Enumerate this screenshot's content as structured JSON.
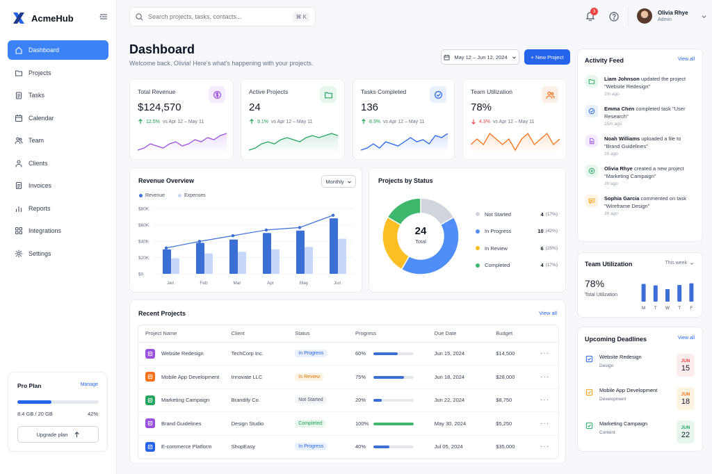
{
  "app": {
    "name": "AcmeHub"
  },
  "sidebar": {
    "items": [
      {
        "label": "Dashboard",
        "icon": "home-icon",
        "active": true
      },
      {
        "label": "Projects",
        "icon": "folder-icon"
      },
      {
        "label": "Tasks",
        "icon": "clipboard-icon"
      },
      {
        "label": "Calendar",
        "icon": "calendar-icon"
      },
      {
        "label": "Team",
        "icon": "users-icon"
      },
      {
        "label": "Clients",
        "icon": "user-icon"
      },
      {
        "label": "Invoices",
        "icon": "invoice-icon"
      },
      {
        "label": "Reports",
        "icon": "bar-chart-icon"
      },
      {
        "label": "Integrations",
        "icon": "grid-icon"
      },
      {
        "label": "Settings",
        "icon": "gear-icon"
      }
    ],
    "plan": {
      "title": "Pro Plan",
      "manage": "Manage",
      "used": "8.4 GB / 20 GB",
      "percent_label": "42%",
      "percent": 0.42,
      "upgrade": "Upgrade plan"
    }
  },
  "header": {
    "search_placeholder": "Search projects, tasks, contacts...",
    "shortcut": "⌘ K",
    "notification_count": "3",
    "user": {
      "name": "Olivia Rhye",
      "role": "Admin"
    }
  },
  "page": {
    "title": "Dashboard",
    "subtitle": "Welcome back, Olivia! Here's what's happening with your projects.",
    "date_range": "May 12 – Jun 12, 2024",
    "new_project": "+ New Project"
  },
  "stats": [
    {
      "title": "Total Revenue",
      "value": "$124,570",
      "delta": "12.5%",
      "direction": "up",
      "compare": "vs Apr 12 – May 11",
      "color": "#9b51e0",
      "bg": "#f4ebff",
      "icon": "dollar-icon",
      "spark": [
        6,
        7,
        9,
        8,
        7,
        9,
        10,
        8,
        9,
        11,
        10,
        12,
        11,
        13,
        14
      ]
    },
    {
      "title": "Active Projects",
      "value": "24",
      "delta": "9.1%",
      "direction": "up",
      "compare": "vs Apr 12 – May 11",
      "color": "#22a55e",
      "bg": "#e8f7ee",
      "icon": "folder-icon",
      "spark": [
        5,
        6,
        8,
        9,
        8,
        10,
        11,
        10,
        9,
        11,
        12,
        11,
        12,
        13,
        12
      ]
    },
    {
      "title": "Tasks Completed",
      "value": "136",
      "delta": "8.3%",
      "direction": "up",
      "compare": "vs Apr 12 – May 11",
      "color": "#2563eb",
      "bg": "#e8f0fe",
      "icon": "check-circle-icon",
      "spark": [
        6,
        7,
        9,
        7,
        10,
        9,
        8,
        10,
        12,
        10,
        11,
        9,
        13,
        12,
        14
      ]
    },
    {
      "title": "Team Utilization",
      "value": "78%",
      "delta": "4.3%",
      "direction": "down",
      "compare": "vs Apr 12 – May 11",
      "color": "#f97316",
      "bg": "#fdeee7",
      "icon": "users-icon",
      "spark": [
        9,
        10,
        9,
        11,
        10,
        9,
        10,
        8,
        10,
        11,
        9,
        10,
        11,
        9,
        10
      ]
    }
  ],
  "colors": {
    "up": "#16a34a",
    "down": "#ef4444",
    "accent": "#3b82f6",
    "light": "#c7d7fb"
  },
  "revenue": {
    "title": "Revenue Overview",
    "period": "Monthly",
    "legend": [
      "Revenue",
      "Expenses"
    ],
    "chart_data": {
      "type": "bar",
      "categories": [
        "Jan",
        "Feb",
        "Mar",
        "Apr",
        "May",
        "Jun"
      ],
      "yticks": [
        "$80K",
        "$60K",
        "$40K",
        "$20K",
        "$0"
      ],
      "ylim": [
        0,
        80000
      ],
      "series": [
        {
          "name": "Revenue",
          "values": [
            30000,
            38000,
            42000,
            50000,
            53000,
            68000
          ]
        },
        {
          "name": "Expenses",
          "values": [
            19000,
            25000,
            27000,
            30000,
            33000,
            43000
          ]
        }
      ],
      "line": [
        30000,
        38000,
        45000,
        52000,
        55000,
        70000
      ]
    }
  },
  "status": {
    "title": "Projects by Status",
    "total": "24",
    "total_label": "Total",
    "items": [
      {
        "label": "Not Started",
        "count": "4",
        "pct": "(17%)",
        "value": 4,
        "color": "#d0d5dd"
      },
      {
        "label": "In Progress",
        "count": "10",
        "pct": "(42%)",
        "value": 10,
        "color": "#4f8ef7"
      },
      {
        "label": "In Review",
        "count": "6",
        "pct": "(25%)",
        "value": 6,
        "color": "#fbbf24"
      },
      {
        "label": "Completed",
        "count": "4",
        "pct": "(17%)",
        "value": 4,
        "color": "#3fb86e"
      }
    ]
  },
  "projects": {
    "title": "Recent Projects",
    "view_all": "View all",
    "columns": [
      "Project Name",
      "Client",
      "Status",
      "Progress",
      "Due Date",
      "Budget"
    ],
    "rows": [
      {
        "name": "Website Redesign",
        "client": "TechCorp Inc.",
        "status": "In Progress",
        "progress": 60,
        "progress_label": "60%",
        "due": "Jun 15, 2024",
        "budget": "$14,500",
        "icon_color": "#9b51e0",
        "status_color": "#2563eb",
        "status_bg": "#e8f0fe",
        "bar_color": "#3b6fd6"
      },
      {
        "name": "Mobile App Development",
        "client": "Innovate LLC",
        "status": "In Review",
        "progress": 75,
        "progress_label": "75%",
        "due": "Jun 18, 2024",
        "budget": "$28,000",
        "icon_color": "#f97316",
        "status_color": "#d97706",
        "status_bg": "#fef3e2",
        "bar_color": "#3b6fd6"
      },
      {
        "name": "Marketing Campaign",
        "client": "Brandify Co.",
        "status": "Not Started",
        "progress": 20,
        "progress_label": "20%",
        "due": "Jun 22, 2024",
        "budget": "$8,750",
        "icon_color": "#22a55e",
        "status_color": "#475467",
        "status_bg": "#f2f4f7",
        "bar_color": "#3b6fd6"
      },
      {
        "name": "Brand Guidelines",
        "client": "Design Studio",
        "status": "Completed",
        "progress": 100,
        "progress_label": "100%",
        "due": "May 30, 2024",
        "budget": "$5,250",
        "icon_color": "#9b51e0",
        "status_color": "#16a34a",
        "status_bg": "#e8f7ee",
        "bar_color": "#3fb86e"
      },
      {
        "name": "E-commerce Platform",
        "client": "ShopEasy",
        "status": "In Progress",
        "progress": 40,
        "progress_label": "40%",
        "due": "Jul 05, 2024",
        "budget": "$35,000",
        "icon_color": "#2563eb",
        "status_color": "#2563eb",
        "status_bg": "#e8f0fe",
        "bar_color": "#3b6fd6"
      }
    ]
  },
  "activity": {
    "title": "Activity Feed",
    "view_all": "View all",
    "items": [
      {
        "actor": "Liam Johnson",
        "text": " updated the project \"Website Redesign\"",
        "time": "2m ago",
        "color": "#22a55e",
        "bg": "#e8f7ee",
        "icon": "folder-icon"
      },
      {
        "actor": "Emma Chen",
        "text": " completed task \"User Research\"",
        "time": "15m ago",
        "color": "#2563eb",
        "bg": "#e8f0fe",
        "icon": "check-circle-icon"
      },
      {
        "actor": "Noah Williams",
        "text": " uploaded a file to \"Brand Guidelines\"",
        "time": "1h ago",
        "color": "#9b51e0",
        "bg": "#f4ebff",
        "icon": "file-icon"
      },
      {
        "actor": "Olivia Rhye",
        "text": " created a new project \"Marketing Campaign\"",
        "time": "2h ago",
        "color": "#22a55e",
        "bg": "#e8f7ee",
        "icon": "plus-circle-icon"
      },
      {
        "actor": "Sophia Garcia",
        "text": " commented on task \"Wireframe Design\"",
        "time": "3h ago",
        "color": "#f59e0b",
        "bg": "#fef3e2",
        "icon": "comment-icon"
      }
    ]
  },
  "utilization": {
    "title": "Team Utilization",
    "period": "This week",
    "value": "78%",
    "label": "Total Utilization",
    "chart_data": {
      "type": "bar",
      "categories": [
        "M",
        "T",
        "W",
        "T",
        "F"
      ],
      "values": [
        85,
        78,
        60,
        80,
        88
      ]
    }
  },
  "deadlines": {
    "title": "Upcoming Deadlines",
    "view_all": "View all",
    "items": [
      {
        "name": "Website Redesign",
        "category": "Design",
        "month": "JUN",
        "day": "15",
        "color": "#ef4444",
        "bg": "#fdecec",
        "icon_color": "#2563eb"
      },
      {
        "name": "Mobile App Development",
        "category": "Development",
        "month": "JUN",
        "day": "18",
        "color": "#f97316",
        "bg": "#fef3e2",
        "icon_color": "#f59e0b"
      },
      {
        "name": "Marketing Campaign",
        "category": "Content",
        "month": "JUN",
        "day": "22",
        "color": "#22a55e",
        "bg": "#e8f7ee",
        "icon_color": "#22a55e"
      }
    ]
  }
}
